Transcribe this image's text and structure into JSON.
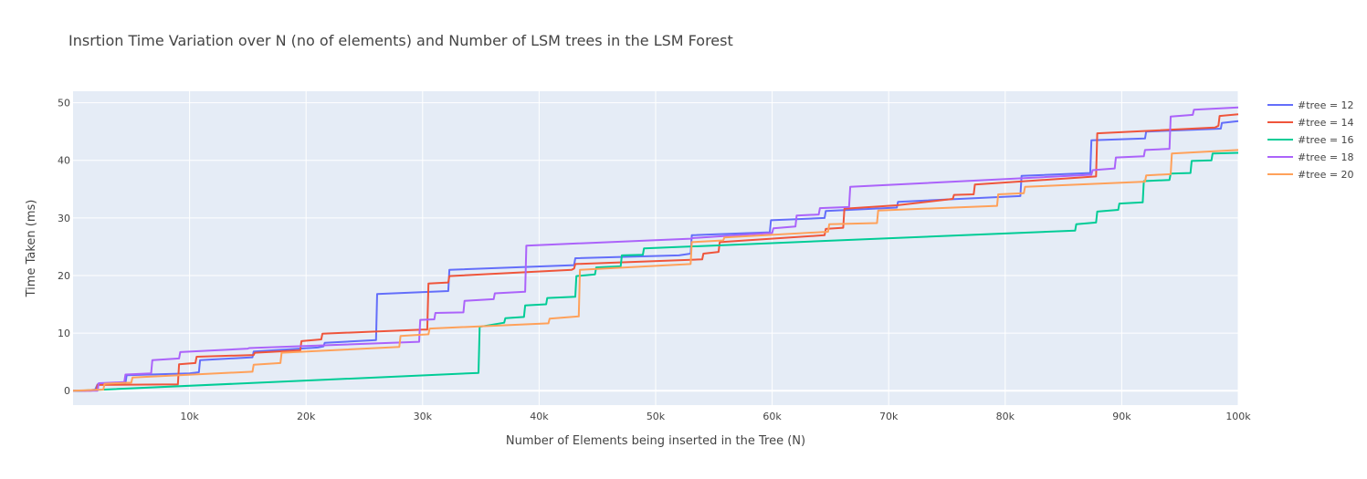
{
  "chart_data": {
    "type": "line",
    "line_shape": "step",
    "title": "Insrtion Time Variation over N (no of elements) and Number of LSM trees in the LSM Forest",
    "xlabel": "Number of Elements being inserted in the Tree (N)",
    "ylabel": "Time Taken (ms)",
    "xlim": [
      0,
      100000
    ],
    "ylim": [
      -2.5,
      52
    ],
    "x_ticks": [
      10000,
      20000,
      30000,
      40000,
      50000,
      60000,
      70000,
      80000,
      90000,
      100000
    ],
    "x_tick_labels": [
      "10k",
      "20k",
      "30k",
      "40k",
      "50k",
      "60k",
      "70k",
      "80k",
      "90k",
      "100k"
    ],
    "y_ticks": [
      0,
      10,
      20,
      30,
      40,
      50
    ],
    "y_tick_labels": [
      "0",
      "10",
      "20",
      "30",
      "40",
      "50"
    ],
    "grid": true,
    "plot_background": "#e5ecf6",
    "legend_position": "right",
    "series": [
      {
        "name": "#tree = 12",
        "color": "#636efa",
        "points": [
          [
            0,
            0
          ],
          [
            1000,
            0
          ],
          [
            1900,
            0.2
          ],
          [
            2100,
            1.1
          ],
          [
            4500,
            1.3
          ],
          [
            4600,
            2.7
          ],
          [
            10000,
            3.0
          ],
          [
            10800,
            3.2
          ],
          [
            10900,
            5.3
          ],
          [
            15400,
            5.8
          ],
          [
            15500,
            6.8
          ],
          [
            21000,
            7.5
          ],
          [
            21500,
            7.7
          ],
          [
            21600,
            8.3
          ],
          [
            26000,
            8.8
          ],
          [
            26100,
            16.8
          ],
          [
            32200,
            17.3
          ],
          [
            32300,
            21.0
          ],
          [
            43000,
            21.8
          ],
          [
            43100,
            23.0
          ],
          [
            52000,
            23.5
          ],
          [
            53000,
            23.8
          ],
          [
            53100,
            27.0
          ],
          [
            59800,
            27.5
          ],
          [
            59900,
            29.6
          ],
          [
            64500,
            30.0
          ],
          [
            64600,
            31.2
          ],
          [
            70700,
            31.8
          ],
          [
            70800,
            32.8
          ],
          [
            81300,
            33.8
          ],
          [
            81400,
            37.3
          ],
          [
            87300,
            37.8
          ],
          [
            87400,
            43.5
          ],
          [
            92000,
            43.8
          ],
          [
            92100,
            45.0
          ],
          [
            98500,
            45.5
          ],
          [
            98600,
            46.5
          ],
          [
            100000,
            46.8
          ]
        ]
      },
      {
        "name": "#tree = 14",
        "color": "#ef553b",
        "points": [
          [
            0,
            0
          ],
          [
            1500,
            0
          ],
          [
            2000,
            0.1
          ],
          [
            2100,
            1.0
          ],
          [
            9000,
            1.1
          ],
          [
            9100,
            4.6
          ],
          [
            10500,
            4.8
          ],
          [
            10600,
            5.9
          ],
          [
            15500,
            6.2
          ],
          [
            15600,
            6.6
          ],
          [
            19500,
            7.0
          ],
          [
            19600,
            8.6
          ],
          [
            21300,
            8.9
          ],
          [
            21400,
            9.9
          ],
          [
            30000,
            10.6
          ],
          [
            30400,
            10.6
          ],
          [
            30500,
            18.6
          ],
          [
            32200,
            18.8
          ],
          [
            32300,
            19.9
          ],
          [
            42800,
            21.0
          ],
          [
            43000,
            21.2
          ],
          [
            43100,
            22.0
          ],
          [
            54000,
            22.8
          ],
          [
            54100,
            23.8
          ],
          [
            55400,
            24.1
          ],
          [
            55500,
            25.8
          ],
          [
            64500,
            27.0
          ],
          [
            64600,
            28.1
          ],
          [
            66100,
            28.3
          ],
          [
            66200,
            31.6
          ],
          [
            70700,
            32.2
          ],
          [
            75500,
            33.3
          ],
          [
            75600,
            34.0
          ],
          [
            77300,
            34.1
          ],
          [
            77400,
            35.8
          ],
          [
            87800,
            37.2
          ],
          [
            87900,
            44.7
          ],
          [
            98000,
            45.7
          ],
          [
            98300,
            46.0
          ],
          [
            98400,
            47.7
          ],
          [
            100000,
            48.0
          ]
        ]
      },
      {
        "name": "#tree = 16",
        "color": "#00cc96",
        "points": [
          [
            0,
            0
          ],
          [
            500,
            0
          ],
          [
            34800,
            3.1
          ],
          [
            34900,
            11.1
          ],
          [
            37000,
            11.8
          ],
          [
            37100,
            12.6
          ],
          [
            38700,
            12.8
          ],
          [
            38800,
            14.8
          ],
          [
            40600,
            15.0
          ],
          [
            40700,
            16.1
          ],
          [
            43100,
            16.3
          ],
          [
            43200,
            19.9
          ],
          [
            44800,
            20.2
          ],
          [
            44900,
            21.4
          ],
          [
            47000,
            21.6
          ],
          [
            47100,
            23.5
          ],
          [
            48900,
            23.6
          ],
          [
            49000,
            24.7
          ],
          [
            86000,
            27.8
          ],
          [
            86100,
            28.9
          ],
          [
            87800,
            29.2
          ],
          [
            87900,
            31.1
          ],
          [
            89700,
            31.4
          ],
          [
            89800,
            32.5
          ],
          [
            91800,
            32.7
          ],
          [
            91900,
            36.4
          ],
          [
            94100,
            36.6
          ],
          [
            94200,
            37.7
          ],
          [
            95900,
            37.8
          ],
          [
            96000,
            39.9
          ],
          [
            97700,
            40.0
          ],
          [
            97800,
            41.2
          ],
          [
            100000,
            41.3
          ]
        ]
      },
      {
        "name": "#tree = 18",
        "color": "#ab63fa",
        "points": [
          [
            0,
            0
          ],
          [
            2100,
            0
          ],
          [
            2200,
            1.3
          ],
          [
            4400,
            1.5
          ],
          [
            4500,
            2.8
          ],
          [
            6700,
            3.0
          ],
          [
            6800,
            5.3
          ],
          [
            9100,
            5.6
          ],
          [
            9200,
            6.7
          ],
          [
            15000,
            7.3
          ],
          [
            15100,
            7.4
          ],
          [
            29700,
            8.5
          ],
          [
            29800,
            12.3
          ],
          [
            31000,
            12.4
          ],
          [
            31100,
            13.5
          ],
          [
            33500,
            13.6
          ],
          [
            33600,
            15.6
          ],
          [
            36100,
            15.9
          ],
          [
            36200,
            16.9
          ],
          [
            38800,
            17.2
          ],
          [
            38900,
            25.2
          ],
          [
            53000,
            26.4
          ],
          [
            53100,
            26.5
          ],
          [
            60000,
            27.4
          ],
          [
            60100,
            28.2
          ],
          [
            62000,
            28.5
          ],
          [
            62100,
            30.4
          ],
          [
            64000,
            30.6
          ],
          [
            64100,
            31.7
          ],
          [
            66600,
            31.9
          ],
          [
            66700,
            35.4
          ],
          [
            87400,
            37.5
          ],
          [
            87500,
            38.3
          ],
          [
            89400,
            38.6
          ],
          [
            89500,
            40.5
          ],
          [
            91900,
            40.7
          ],
          [
            92000,
            41.8
          ],
          [
            94100,
            42.0
          ],
          [
            94200,
            47.6
          ],
          [
            96100,
            47.9
          ],
          [
            96200,
            48.8
          ],
          [
            100000,
            49.2
          ]
        ]
      },
      {
        "name": "#tree = 20",
        "color": "#ffa15a",
        "points": [
          [
            0,
            0
          ],
          [
            2600,
            0.2
          ],
          [
            2700,
            1.2
          ],
          [
            5000,
            1.4
          ],
          [
            5100,
            2.3
          ],
          [
            15400,
            3.3
          ],
          [
            15500,
            4.5
          ],
          [
            17800,
            4.8
          ],
          [
            17900,
            6.6
          ],
          [
            28000,
            7.6
          ],
          [
            28100,
            9.5
          ],
          [
            30500,
            9.8
          ],
          [
            30600,
            10.8
          ],
          [
            40800,
            11.7
          ],
          [
            40900,
            12.5
          ],
          [
            43400,
            12.9
          ],
          [
            43500,
            21.0
          ],
          [
            53000,
            22.0
          ],
          [
            53100,
            25.8
          ],
          [
            55800,
            26.1
          ],
          [
            55900,
            26.6
          ],
          [
            64800,
            27.6
          ],
          [
            64900,
            28.9
          ],
          [
            69000,
            29.1
          ],
          [
            69100,
            31.3
          ],
          [
            79300,
            32.1
          ],
          [
            79400,
            34.1
          ],
          [
            81600,
            34.3
          ],
          [
            81700,
            35.4
          ],
          [
            92000,
            36.3
          ],
          [
            92100,
            37.4
          ],
          [
            94200,
            37.6
          ],
          [
            94300,
            41.2
          ],
          [
            100000,
            41.8
          ]
        ]
      }
    ]
  }
}
